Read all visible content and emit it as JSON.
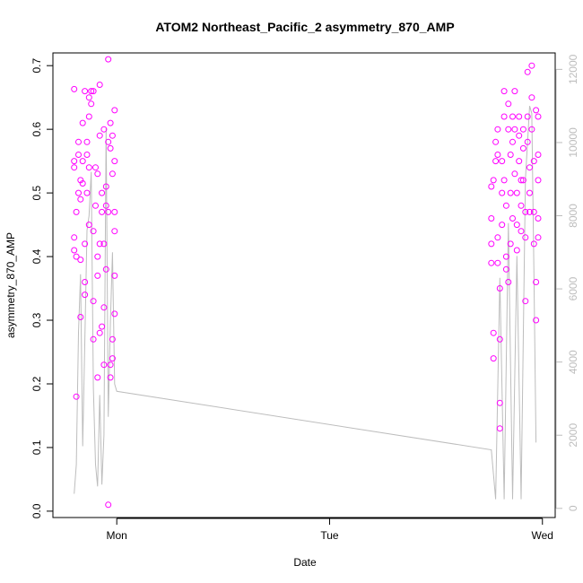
{
  "chart_data": {
    "type": "scatter",
    "title": "ATOM2 Northeast_Pacific_2 asymmetry_870_AMP",
    "xlabel": "Date",
    "ylabel": "asymmetry_870_AMP",
    "x_ticks": [
      "Mon",
      "Tue",
      "Wed"
    ],
    "x_tick_days": [
      1.0,
      2.0,
      3.0
    ],
    "xlim_days": [
      0.7,
      3.06
    ],
    "ylim": [
      -0.01,
      0.72
    ],
    "y_ticks": [
      0.0,
      0.1,
      0.2,
      0.3,
      0.4,
      0.5,
      0.6,
      0.7
    ],
    "y_tick_labels": [
      "0.0",
      "0.1",
      "0.2",
      "0.3",
      "0.4",
      "0.5",
      "0.6",
      "0.7"
    ],
    "y2_ticks": [
      0,
      2000,
      4000,
      6000,
      8000,
      10000,
      12000
    ],
    "y2_tick_labels": [
      "0",
      "2000",
      "4000",
      "6000",
      "8000",
      "10000",
      "12000"
    ],
    "y2lim": [
      -250,
      12450
    ],
    "grid": false,
    "colors": {
      "points": "#ff00ff",
      "line": "#bdbdbd",
      "axis": "#000000",
      "axis2": "#bdbdbd"
    },
    "series": [
      {
        "type": "scatter",
        "values": [
          [
            0.8,
            0.663
          ],
          [
            0.8,
            0.55
          ],
          [
            0.8,
            0.54
          ],
          [
            0.8,
            0.43
          ],
          [
            0.8,
            0.41
          ],
          [
            0.81,
            0.18
          ],
          [
            0.81,
            0.4
          ],
          [
            0.81,
            0.47
          ],
          [
            0.82,
            0.5
          ],
          [
            0.82,
            0.56
          ],
          [
            0.82,
            0.58
          ],
          [
            0.83,
            0.52
          ],
          [
            0.83,
            0.49
          ],
          [
            0.83,
            0.305
          ],
          [
            0.83,
            0.395
          ],
          [
            0.84,
            0.515
          ],
          [
            0.84,
            0.55
          ],
          [
            0.84,
            0.61
          ],
          [
            0.85,
            0.66
          ],
          [
            0.85,
            0.36
          ],
          [
            0.85,
            0.34
          ],
          [
            0.85,
            0.42
          ],
          [
            0.86,
            0.56
          ],
          [
            0.86,
            0.58
          ],
          [
            0.86,
            0.5
          ],
          [
            0.87,
            0.54
          ],
          [
            0.87,
            0.62
          ],
          [
            0.87,
            0.65
          ],
          [
            0.87,
            0.45
          ],
          [
            0.88,
            0.64
          ],
          [
            0.88,
            0.66
          ],
          [
            0.89,
            0.44
          ],
          [
            0.89,
            0.33
          ],
          [
            0.89,
            0.27
          ],
          [
            0.89,
            0.66
          ],
          [
            0.9,
            0.54
          ],
          [
            0.9,
            0.48
          ],
          [
            0.91,
            0.4
          ],
          [
            0.91,
            0.53
          ],
          [
            0.91,
            0.21
          ],
          [
            0.91,
            0.37
          ],
          [
            0.92,
            0.42
          ],
          [
            0.92,
            0.59
          ],
          [
            0.92,
            0.28
          ],
          [
            0.92,
            0.67
          ],
          [
            0.93,
            0.47
          ],
          [
            0.93,
            0.5
          ],
          [
            0.93,
            0.29
          ],
          [
            0.94,
            0.32
          ],
          [
            0.94,
            0.23
          ],
          [
            0.94,
            0.42
          ],
          [
            0.94,
            0.6
          ],
          [
            0.95,
            0.51
          ],
          [
            0.95,
            0.48
          ],
          [
            0.95,
            0.38
          ],
          [
            0.96,
            0.58
          ],
          [
            0.96,
            0.71
          ],
          [
            0.96,
            0.47
          ],
          [
            0.96,
            0.01
          ],
          [
            0.97,
            0.21
          ],
          [
            0.97,
            0.23
          ],
          [
            0.97,
            0.57
          ],
          [
            0.97,
            0.61
          ],
          [
            0.98,
            0.24
          ],
          [
            0.98,
            0.27
          ],
          [
            0.98,
            0.53
          ],
          [
            0.98,
            0.59
          ],
          [
            0.99,
            0.55
          ],
          [
            0.99,
            0.47
          ],
          [
            0.99,
            0.37
          ],
          [
            0.99,
            0.31
          ],
          [
            0.99,
            0.63
          ],
          [
            0.99,
            0.44
          ],
          [
            2.76,
            0.51
          ],
          [
            2.76,
            0.46
          ],
          [
            2.76,
            0.42
          ],
          [
            2.76,
            0.39
          ],
          [
            2.77,
            0.28
          ],
          [
            2.77,
            0.24
          ],
          [
            2.77,
            0.52
          ],
          [
            2.78,
            0.58
          ],
          [
            2.78,
            0.55
          ],
          [
            2.79,
            0.43
          ],
          [
            2.79,
            0.56
          ],
          [
            2.79,
            0.6
          ],
          [
            2.79,
            0.39
          ],
          [
            2.8,
            0.35
          ],
          [
            2.8,
            0.27
          ],
          [
            2.8,
            0.17
          ],
          [
            2.8,
            0.13
          ],
          [
            2.81,
            0.45
          ],
          [
            2.81,
            0.5
          ],
          [
            2.81,
            0.55
          ],
          [
            2.82,
            0.62
          ],
          [
            2.82,
            0.66
          ],
          [
            2.82,
            0.52
          ],
          [
            2.83,
            0.48
          ],
          [
            2.83,
            0.4
          ],
          [
            2.83,
            0.38
          ],
          [
            2.84,
            0.36
          ],
          [
            2.84,
            0.6
          ],
          [
            2.84,
            0.64
          ],
          [
            2.85,
            0.56
          ],
          [
            2.85,
            0.5
          ],
          [
            2.85,
            0.42
          ],
          [
            2.86,
            0.62
          ],
          [
            2.86,
            0.58
          ],
          [
            2.86,
            0.46
          ],
          [
            2.87,
            0.66
          ],
          [
            2.87,
            0.6
          ],
          [
            2.87,
            0.53
          ],
          [
            2.88,
            0.5
          ],
          [
            2.88,
            0.45
          ],
          [
            2.88,
            0.41
          ],
          [
            2.89,
            0.62
          ],
          [
            2.89,
            0.59
          ],
          [
            2.89,
            0.55
          ],
          [
            2.9,
            0.52
          ],
          [
            2.9,
            0.48
          ],
          [
            2.9,
            0.44
          ],
          [
            2.91,
            0.6
          ],
          [
            2.91,
            0.57
          ],
          [
            2.91,
            0.52
          ],
          [
            2.92,
            0.47
          ],
          [
            2.92,
            0.33
          ],
          [
            2.92,
            0.43
          ],
          [
            2.93,
            0.69
          ],
          [
            2.93,
            0.62
          ],
          [
            2.93,
            0.58
          ],
          [
            2.94,
            0.54
          ],
          [
            2.94,
            0.5
          ],
          [
            2.94,
            0.47
          ],
          [
            2.95,
            0.7
          ],
          [
            2.95,
            0.65
          ],
          [
            2.95,
            0.6
          ],
          [
            2.96,
            0.55
          ],
          [
            2.96,
            0.47
          ],
          [
            2.96,
            0.42
          ],
          [
            2.97,
            0.3
          ],
          [
            2.97,
            0.36
          ],
          [
            2.97,
            0.63
          ],
          [
            2.98,
            0.62
          ],
          [
            2.98,
            0.56
          ],
          [
            2.98,
            0.52
          ],
          [
            2.98,
            0.46
          ],
          [
            2.98,
            0.43
          ]
        ]
      },
      {
        "type": "line",
        "axis": "right",
        "values": [
          [
            0.8,
            400
          ],
          [
            0.81,
            1200
          ],
          [
            0.82,
            4800
          ],
          [
            0.83,
            6400
          ],
          [
            0.84,
            1700
          ],
          [
            0.85,
            4600
          ],
          [
            0.86,
            7600
          ],
          [
            0.87,
            8000
          ],
          [
            0.88,
            9200
          ],
          [
            0.89,
            3300
          ],
          [
            0.9,
            1200
          ],
          [
            0.91,
            600
          ],
          [
            0.92,
            3100
          ],
          [
            0.93,
            650
          ],
          [
            0.94,
            2000
          ],
          [
            0.95,
            10400
          ],
          [
            0.96,
            2500
          ],
          [
            0.97,
            5100
          ],
          [
            0.98,
            7000
          ],
          [
            0.99,
            3400
          ],
          [
            1.0,
            3200
          ],
          [
            2.76,
            1600
          ],
          [
            2.78,
            250
          ],
          [
            2.8,
            6300
          ],
          [
            2.82,
            250
          ],
          [
            2.84,
            7800
          ],
          [
            2.86,
            250
          ],
          [
            2.88,
            6900
          ],
          [
            2.9,
            250
          ],
          [
            2.92,
            9000
          ],
          [
            2.94,
            11000
          ],
          [
            2.95,
            10800
          ],
          [
            2.96,
            6400
          ],
          [
            2.97,
            1800
          ]
        ]
      }
    ]
  }
}
